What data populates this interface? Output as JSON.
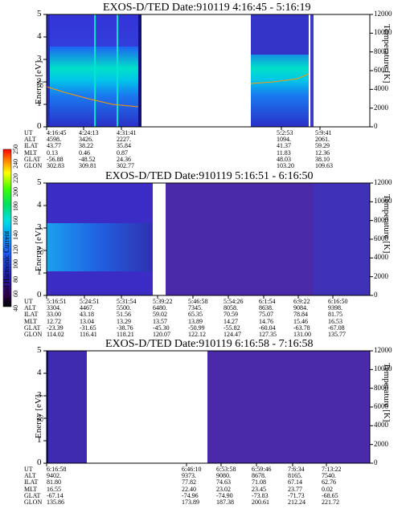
{
  "panels": [
    {
      "title": "EXOS-D/TED  Date:910119  4:16:45 - 5:16:19",
      "ylabel": "Energy [eV]",
      "y2label": "Temperature [K]",
      "yticks": [
        "0",
        "1",
        "2",
        "3",
        "4",
        "5"
      ],
      "y2ticks": [
        "0",
        "2000",
        "4000",
        "6000",
        "8000",
        "10000",
        "12000"
      ],
      "row_labels": [
        "UT",
        "ALT",
        "ILAT",
        "MLT",
        "GLAT",
        "GLON"
      ],
      "columns": [
        {
          "ut": "4:16:45",
          "alt": "4598.",
          "ilat": "43.77",
          "mlt": "0.13",
          "glat": "-56.88",
          "glon": "302.83"
        },
        {
          "ut": "4:24:13",
          "alt": "3426.",
          "ilat": "38.22",
          "mlt": "0.46",
          "glat": "-48.52",
          "glon": "309.81"
        },
        {
          "ut": "4:31:41",
          "alt": "2227.",
          "ilat": "35.84",
          "mlt": "0.87",
          "glat": "24.36",
          "glon": "302.77"
        },
        {
          "ut": "5:2:53",
          "alt": "1094.",
          "ilat": "41.37",
          "mlt": "11.83",
          "glat": "48.03",
          "glon": "103.20"
        },
        {
          "ut": "5:9:41",
          "alt": "2061.",
          "ilat": "59.29",
          "mlt": "12.36",
          "glat": "38.10",
          "glon": "109.63"
        }
      ]
    },
    {
      "title": "EXOS-D/TED  Date:910119  5:16:51 - 6:16:50",
      "ylabel": "Energy [eV]",
      "y2label": "Temperature [K]",
      "yticks": [
        "0",
        "1",
        "2",
        "3",
        "4",
        "5"
      ],
      "y2ticks": [
        "0",
        "2000",
        "4000",
        "6000",
        "8000",
        "10000",
        "12000"
      ],
      "row_labels": [
        "UT",
        "ALT",
        "ILAT",
        "MLT",
        "GLAT",
        "GLON"
      ],
      "columns": [
        {
          "ut": "5:16:51",
          "alt": "3304.",
          "ilat": "33.00",
          "mlt": "12.72",
          "glat": "-23.39",
          "glon": "114.02"
        },
        {
          "ut": "5:24:51",
          "alt": "4467.",
          "ilat": "43.18",
          "mlt": "13.04",
          "glat": "-31.65",
          "glon": "116.41"
        },
        {
          "ut": "5:31:54",
          "alt": "5500.",
          "ilat": "51.56",
          "mlt": "13.29",
          "glat": "-38.76",
          "glon": "118.21"
        },
        {
          "ut": "5:39:22",
          "alt": "6480.",
          "ilat": "59.02",
          "mlt": "13.57",
          "glat": "-45.30",
          "glon": "120.07"
        },
        {
          "ut": "5:46:58",
          "alt": "7345.",
          "ilat": "65.35",
          "mlt": "13.89",
          "glat": "-50.99",
          "glon": "122.12"
        },
        {
          "ut": "5:54:26",
          "alt": "8058.",
          "ilat": "70.59",
          "mlt": "14.27",
          "glat": "-55.82",
          "glon": "124.47"
        },
        {
          "ut": "6:1:54",
          "alt": "8638.",
          "ilat": "75.07",
          "mlt": "14.76",
          "glat": "-60.04",
          "glon": "127.35"
        },
        {
          "ut": "6:9:22",
          "alt": "9084.",
          "ilat": "78.84",
          "mlt": "15.46",
          "glat": "-63.78",
          "glon": "131.00"
        },
        {
          "ut": "6:16:50",
          "alt": "9398.",
          "ilat": "81.75",
          "mlt": "16.53",
          "glat": "-67.08",
          "glon": "135.77"
        }
      ]
    },
    {
      "title": "EXOS-D/TED  Date:910119  6:16:58 - 7:16:58",
      "ylabel": "Energy [eV]",
      "y2label": "Temperature [K]",
      "yticks": [
        "0",
        "1",
        "2",
        "3",
        "4",
        "5"
      ],
      "y2ticks": [
        "0",
        "2000",
        "4000",
        "6000",
        "8000",
        "10000",
        "12000"
      ],
      "row_labels": [
        "UT",
        "ALT",
        "ILAT",
        "MLT",
        "GLAT",
        "GLON"
      ],
      "columns": [
        {
          "ut": "6:16:58",
          "alt": "9402.",
          "ilat": "81.80",
          "mlt": "16.55",
          "glat": "-67.14",
          "glon": "135.86"
        },
        {
          "ut": "6:46:10",
          "alt": "9373.",
          "ilat": "77.82",
          "mlt": "22.40",
          "glat": "-74.96",
          "glon": "173.89"
        },
        {
          "ut": "6:53:58",
          "alt": "9080.",
          "ilat": "74.63",
          "mlt": "23.02",
          "glat": "-74.90",
          "glon": "187.38"
        },
        {
          "ut": "6:59:46",
          "alt": "8678.",
          "ilat": "71.08",
          "mlt": "23.45",
          "glat": "-73.83",
          "glon": "200.61"
        },
        {
          "ut": "7:6:34",
          "alt": "8165.",
          "ilat": "67.14",
          "mlt": "23.77",
          "glat": "-71.73",
          "glon": "212.24"
        },
        {
          "ut": "7:13:22",
          "alt": "7540.",
          "ilat": "62.76",
          "mlt": "0.02",
          "glat": "-68.65",
          "glon": "221.72"
        }
      ]
    }
  ],
  "colorbar": {
    "label": "Second Harmonic Current",
    "ticks": [
      "40",
      "60",
      "80",
      "100",
      "120",
      "140",
      "160",
      "180",
      "200",
      "220",
      "240",
      "250"
    ]
  },
  "chart_data": [
    {
      "type": "heatmap",
      "title": "EXOS-D/TED  Date:910119  4:16:45 - 5:16:19",
      "xlabel": "UT",
      "ylabel": "Energy [eV]",
      "y2label": "Temperature [K]",
      "ylim": [
        0,
        5
      ],
      "y2lim": [
        0,
        12000
      ],
      "x_ticks": [
        "4:16:45",
        "4:24:13",
        "4:31:41",
        "5:2:53",
        "5:9:41"
      ],
      "data_gaps": [
        "4:33 - 5:00"
      ],
      "color_scale": {
        "label": "Second Harmonic Current",
        "min": 40,
        "max": 250
      },
      "temperature_trace": {
        "color": "#ff9900",
        "points": [
          [
            "4:16:45",
            3900
          ],
          [
            "4:24:13",
            2800
          ],
          [
            "4:31:41",
            2000
          ],
          [
            "5:2:53",
            4200
          ],
          [
            "5:9:41",
            4500
          ],
          [
            "5:16:19",
            5200
          ]
        ]
      }
    },
    {
      "type": "heatmap",
      "title": "EXOS-D/TED  Date:910119  5:16:51 - 6:16:50",
      "xlabel": "UT",
      "ylabel": "Energy [eV]",
      "y2label": "Temperature [K]",
      "ylim": [
        0,
        5
      ],
      "y2lim": [
        0,
        12000
      ],
      "x_ticks": [
        "5:16:51",
        "5:24:51",
        "5:31:54",
        "5:39:22",
        "5:46:58",
        "5:54:26",
        "6:1:54",
        "6:9:22",
        "6:16:50"
      ],
      "data_gaps": [
        "5:36 - 5:37"
      ],
      "color_scale": {
        "label": "Second Harmonic Current",
        "min": 40,
        "max": 250
      }
    },
    {
      "type": "heatmap",
      "title": "EXOS-D/TED  Date:910119  6:16:58 - 7:16:58",
      "xlabel": "UT",
      "ylabel": "Energy [eV]",
      "y2label": "Temperature [K]",
      "ylim": [
        0,
        5
      ],
      "y2lim": [
        0,
        12000
      ],
      "x_ticks": [
        "6:16:58",
        "6:46:10",
        "6:53:58",
        "6:59:46",
        "7:6:34",
        "7:13:22"
      ],
      "data_gaps": [
        "6:22 - 6:41"
      ],
      "color_scale": {
        "label": "Second Harmonic Current",
        "min": 40,
        "max": 250
      }
    }
  ]
}
